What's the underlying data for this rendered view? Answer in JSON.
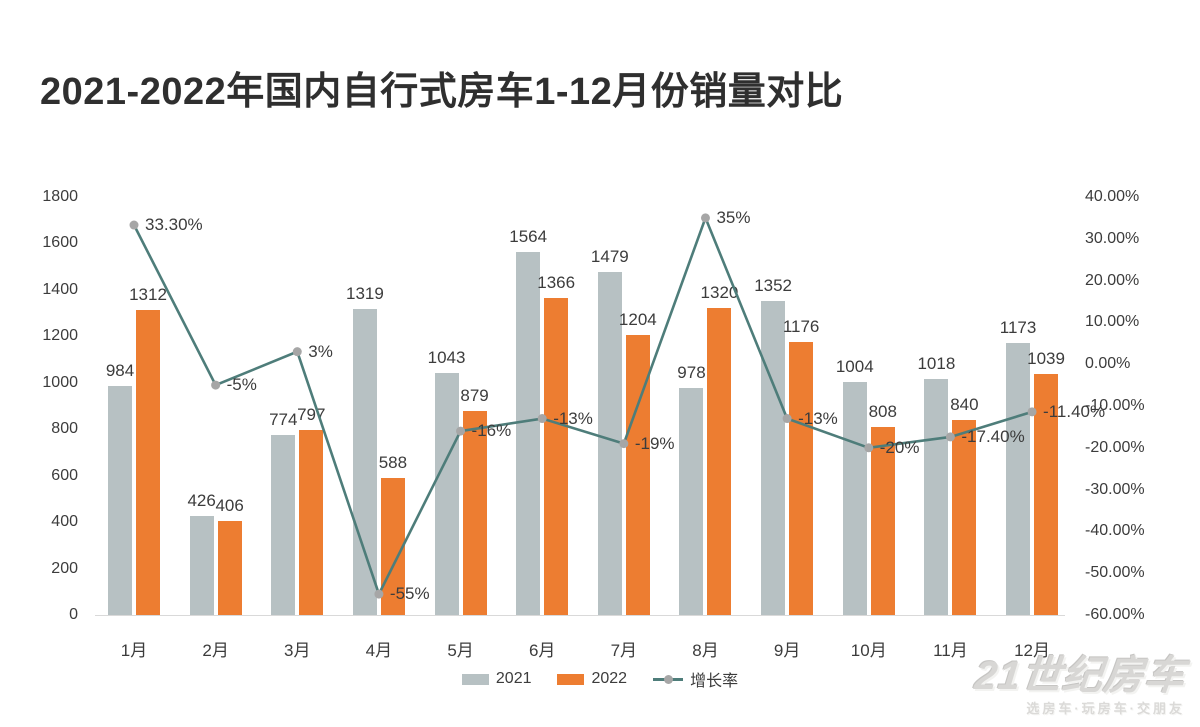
{
  "title": "2021-2022年国内自行式房车1-12月份销量对比",
  "legend": {
    "items": [
      {
        "label": "2021"
      },
      {
        "label": "2022"
      },
      {
        "label": "增长率"
      }
    ]
  },
  "watermark": {
    "brand": "21世纪房车",
    "tagline": "选房车·玩房车·交朋友"
  },
  "colors": {
    "bar_2021": "#b7c1c3",
    "bar_2022": "#ed7d31",
    "growth_line": "#4e7d7a",
    "marker": "#a6a6a6",
    "axis_line": "#d9d9d9",
    "label_text": "#3c3c3c",
    "title_text": "#2f2f2f",
    "watermark_text": "#d8d7d5"
  },
  "chart_data": {
    "type": "bar",
    "subtype": "grouped-bars-with-line",
    "title": "2021-2022年国内自行式房车1-12月份销量对比",
    "categories": [
      "1月",
      "2月",
      "3月",
      "4月",
      "5月",
      "6月",
      "7月",
      "8月",
      "9月",
      "10月",
      "11月",
      "12月"
    ],
    "series": [
      {
        "name": "2021",
        "type": "bar",
        "color": "#b7c1c3",
        "values": [
          984,
          426,
          774,
          1319,
          1043,
          1564,
          1479,
          978,
          1352,
          1004,
          1018,
          1173
        ]
      },
      {
        "name": "2022",
        "type": "bar",
        "color": "#ed7d31",
        "values": [
          1312,
          406,
          797,
          588,
          879,
          1366,
          1204,
          1320,
          1176,
          808,
          840,
          1039
        ]
      },
      {
        "name": "增长率",
        "type": "line",
        "color": "#4e7d7a",
        "marker_color": "#a6a6a6",
        "values_pct": [
          33.3,
          -5,
          3,
          -55,
          -16,
          -13,
          -19,
          35,
          -13,
          -20,
          -17.4,
          -11.4
        ],
        "labels": [
          "33.30%",
          "-5%",
          "3%",
          "-55%",
          "-16%",
          "-13%",
          "-19%",
          "35%",
          "-13%",
          "-20%",
          "-17.40%",
          "-11.40%"
        ]
      }
    ],
    "left_axis": {
      "min": 0,
      "max": 1800,
      "step": 200,
      "ticks": [
        "1800",
        "1600",
        "1400",
        "1200",
        "1000",
        "800",
        "600",
        "400",
        "200",
        "0"
      ]
    },
    "right_axis": {
      "min": -60,
      "max": 40,
      "step": 10,
      "ticks": [
        "40.00%",
        "30.00%",
        "20.00%",
        "10.00%",
        "0.00%",
        "-10.00%",
        "-20.00%",
        "-30.00%",
        "-40.00%",
        "-50.00%",
        "-60.00%"
      ]
    },
    "grid": false,
    "legend_position": "bottom-center"
  }
}
